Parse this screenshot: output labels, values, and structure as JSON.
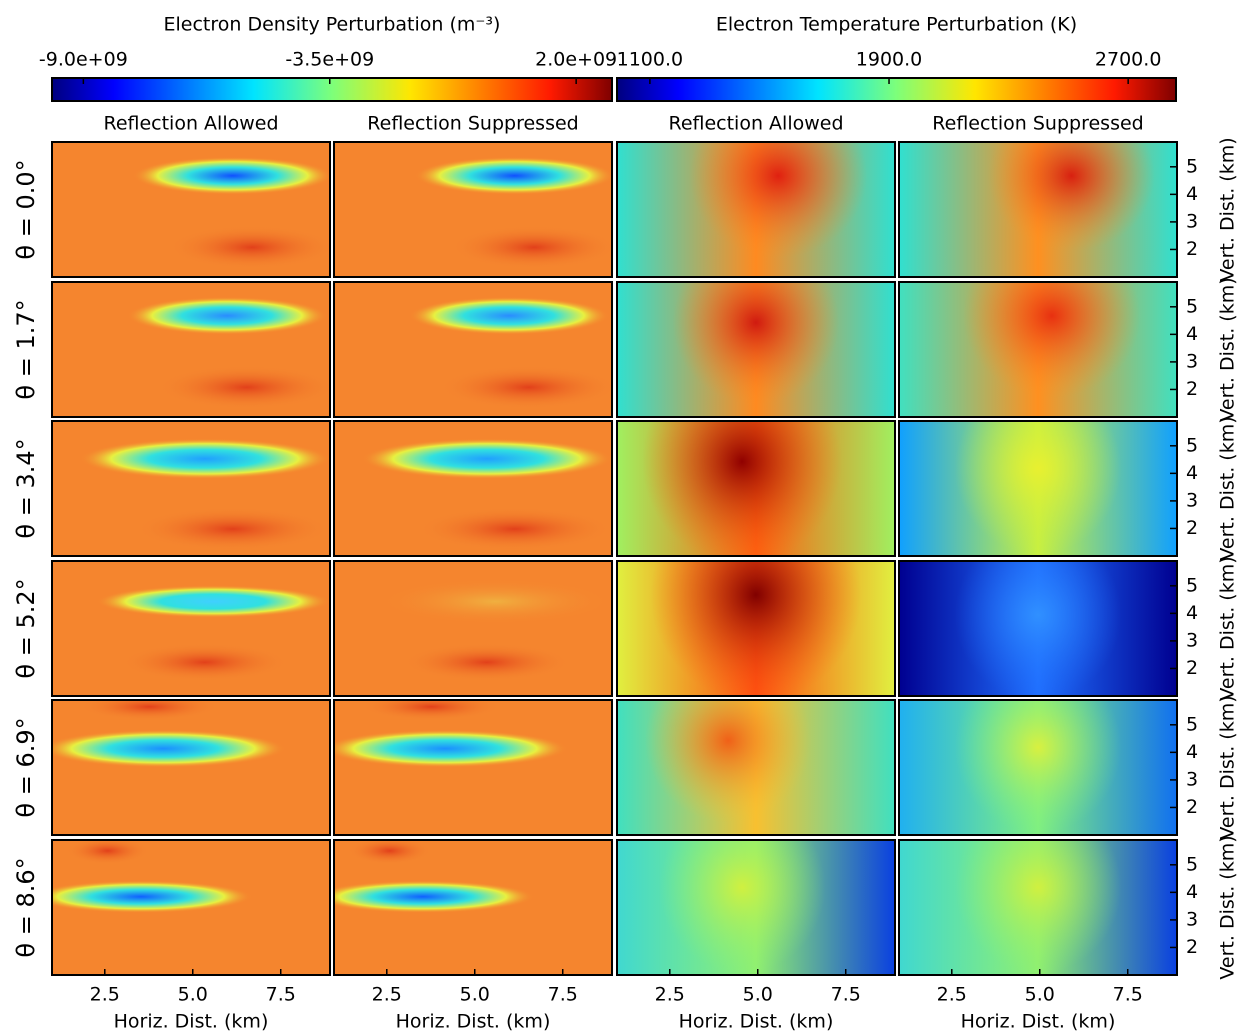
{
  "chart_data": {
    "type": "heatmap-grid",
    "colorbars": [
      {
        "title": "Electron Density Perturbation (m⁻³)",
        "clim": [
          -9700000000.0,
          2800000000.0
        ],
        "ticks": [
          {
            "value": -9000000000.0,
            "label": "-9.0e+09"
          },
          {
            "value": -3500000000.0,
            "label": "-3.5e+09"
          },
          {
            "value": 2000000000.0,
            "label": "2.0e+09"
          }
        ]
      },
      {
        "title": "Electron Temperature Perturbation (K)",
        "clim": [
          990,
          2860
        ],
        "ticks": [
          {
            "value": 1100,
            "label": "1100.0"
          },
          {
            "value": 1900,
            "label": "1900.0"
          },
          {
            "value": 2700,
            "label": "2700.0"
          }
        ]
      }
    ],
    "columns": [
      "Reflection Allowed",
      "Reflection Suppressed",
      "Reflection Allowed",
      "Reflection Suppressed"
    ],
    "rows": [
      "θ = 0.0°",
      "θ = 1.7°",
      "θ = 3.4°",
      "θ = 5.2°",
      "θ = 6.9°",
      "θ = 8.6°"
    ],
    "xlabel": "Horiz. Dist. (km)",
    "ylabel": "Vert. Dist. (km)",
    "xlim": [
      1.0,
      8.9
    ],
    "xticks": [
      2.5,
      {
        "value": 5,
        "label": "5.0"
      },
      7.5
    ],
    "ylim": [
      1.0,
      5.9
    ],
    "yticks": [
      2,
      3,
      4,
      5
    ]
  }
}
